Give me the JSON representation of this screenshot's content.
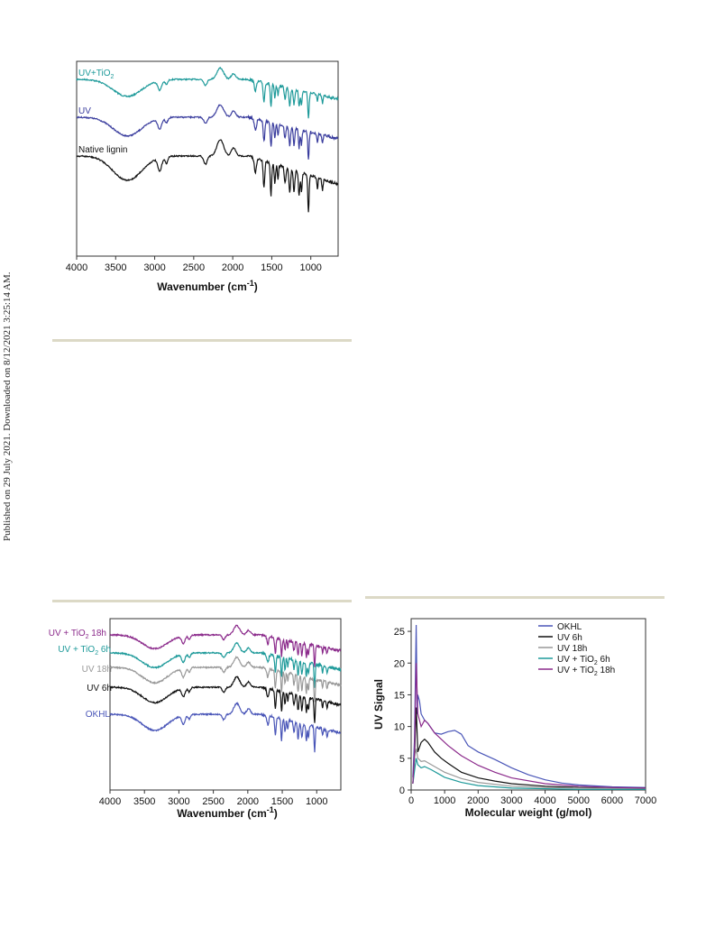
{
  "sidebar": {
    "text": "Published on 29 July 2021. Downloaded on 8/12/2021 3:25:14 AM."
  },
  "colors": {
    "black": "#111111",
    "blue": "#3a3d9e",
    "teal": "#1e9a9a",
    "gray": "#999999",
    "purple": "#8b2a8b",
    "okhl_blue": "#4a56b8"
  },
  "chart_data": [
    {
      "type": "line",
      "xlabel": "Wavenumber (cm",
      "xlabel_sup": "-1",
      "xlabel_end": ")",
      "xlim": [
        4000,
        650
      ],
      "xticks": [
        "4000",
        "3500",
        "3000",
        "2500",
        "2000",
        "1500",
        "1000"
      ],
      "series": [
        {
          "name": "UV+TiO",
          "sub": "2",
          "color": "#1e9a9a"
        },
        {
          "name": "UV",
          "sub": "",
          "color": "#3a3d9e"
        },
        {
          "name": "Native lignin",
          "sub": "",
          "color": "#111111"
        }
      ]
    },
    {
      "type": "line",
      "xlabel": "Wavenumber (cm",
      "xlabel_sup": "-1",
      "xlabel_end": ")",
      "xlim": [
        4000,
        650
      ],
      "xticks": [
        "4000",
        "3500",
        "3000",
        "2500",
        "2000",
        "1500",
        "1000"
      ],
      "series": [
        {
          "name": "UV + TiO",
          "sub": "2",
          "tail": " 18h",
          "color": "#8b2a8b"
        },
        {
          "name": "UV + TiO",
          "sub": "2",
          "tail": " 6h",
          "color": "#1e9a9a"
        },
        {
          "name": "UV 18h",
          "sub": "",
          "tail": "",
          "color": "#999999"
        },
        {
          "name": "UV 6h",
          "sub": "",
          "tail": "",
          "color": "#111111"
        },
        {
          "name": "OKHL",
          "sub": "",
          "tail": "",
          "color": "#4a56b8"
        }
      ]
    },
    {
      "type": "line",
      "xlabel": "Molecular weight (g/mol)",
      "ylabel": "UV Signal",
      "xlim": [
        0,
        7000
      ],
      "ylim": [
        0,
        27
      ],
      "xticks": [
        "0",
        "1000",
        "2000",
        "3000",
        "4000",
        "5000",
        "6000",
        "7000"
      ],
      "yticks": [
        "0",
        "5",
        "10",
        "15",
        "20",
        "25"
      ],
      "legend": [
        "OKHL",
        "UV 6h",
        "UV 18h",
        "UV + TiO",
        "UV + TiO"
      ],
      "legend_sub": [
        "",
        "",
        "",
        "2",
        "2"
      ],
      "legend_tail": [
        "",
        "",
        "",
        " 6h",
        " 18h"
      ],
      "legend_position": "top-right",
      "series": [
        {
          "name": "OKHL",
          "color": "#4a56b8",
          "x": [
            50,
            100,
            150,
            180,
            200,
            250,
            300,
            400,
            500,
            700,
            900,
            1100,
            1300,
            1500,
            1700,
            2000,
            2500,
            3000,
            3500,
            4000,
            4500,
            5000,
            6000,
            7000
          ],
          "y": [
            2,
            8,
            26,
            12,
            15,
            14,
            12,
            11,
            10.5,
            9,
            8.8,
            9.2,
            9.4,
            8.8,
            7,
            6,
            4.8,
            3.5,
            2.4,
            1.6,
            1.1,
            0.8,
            0.5,
            0.4
          ]
        },
        {
          "name": "UV 6h",
          "color": "#111111",
          "x": [
            50,
            100,
            150,
            200,
            300,
            400,
            500,
            700,
            900,
            1100,
            1300,
            1500,
            2000,
            2500,
            3000,
            4000,
            5000,
            7000
          ],
          "y": [
            1,
            5,
            13,
            6,
            7.5,
            8,
            7.5,
            6,
            5,
            4.2,
            3.5,
            2.8,
            1.9,
            1.4,
            1,
            0.6,
            0.4,
            0.3
          ]
        },
        {
          "name": "UV 18h",
          "color": "#999999",
          "x": [
            50,
            100,
            150,
            200,
            300,
            400,
            600,
            800,
            1000,
            1500,
            2000,
            3000,
            4000,
            5000,
            7000
          ],
          "y": [
            1,
            5,
            6.5,
            5,
            4.5,
            4.6,
            4,
            3.4,
            2.8,
            1.8,
            1.2,
            0.6,
            0.4,
            0.3,
            0.2
          ]
        },
        {
          "name": "UV + TiO2 6h",
          "color": "#1e9a9a",
          "x": [
            50,
            100,
            150,
            200,
            300,
            400,
            600,
            800,
            1000,
            1500,
            2000,
            3000,
            5000,
            7000
          ],
          "y": [
            1,
            3,
            5,
            4,
            3.5,
            3.7,
            3.2,
            2.6,
            2,
            1.2,
            0.7,
            0.3,
            0.1,
            0.1
          ]
        },
        {
          "name": "UV + TiO2 18h",
          "color": "#8b2a8b",
          "x": [
            50,
            100,
            150,
            200,
            300,
            400,
            500,
            700,
            900,
            1100,
            1300,
            1500,
            2000,
            2500,
            3000,
            4000,
            5000,
            6000,
            7000
          ],
          "y": [
            1,
            6,
            20,
            12,
            10,
            11,
            10.5,
            9,
            8,
            7,
            6.2,
            5.4,
            3.9,
            2.8,
            1.9,
            1,
            0.6,
            0.4,
            0.3
          ]
        }
      ]
    }
  ]
}
